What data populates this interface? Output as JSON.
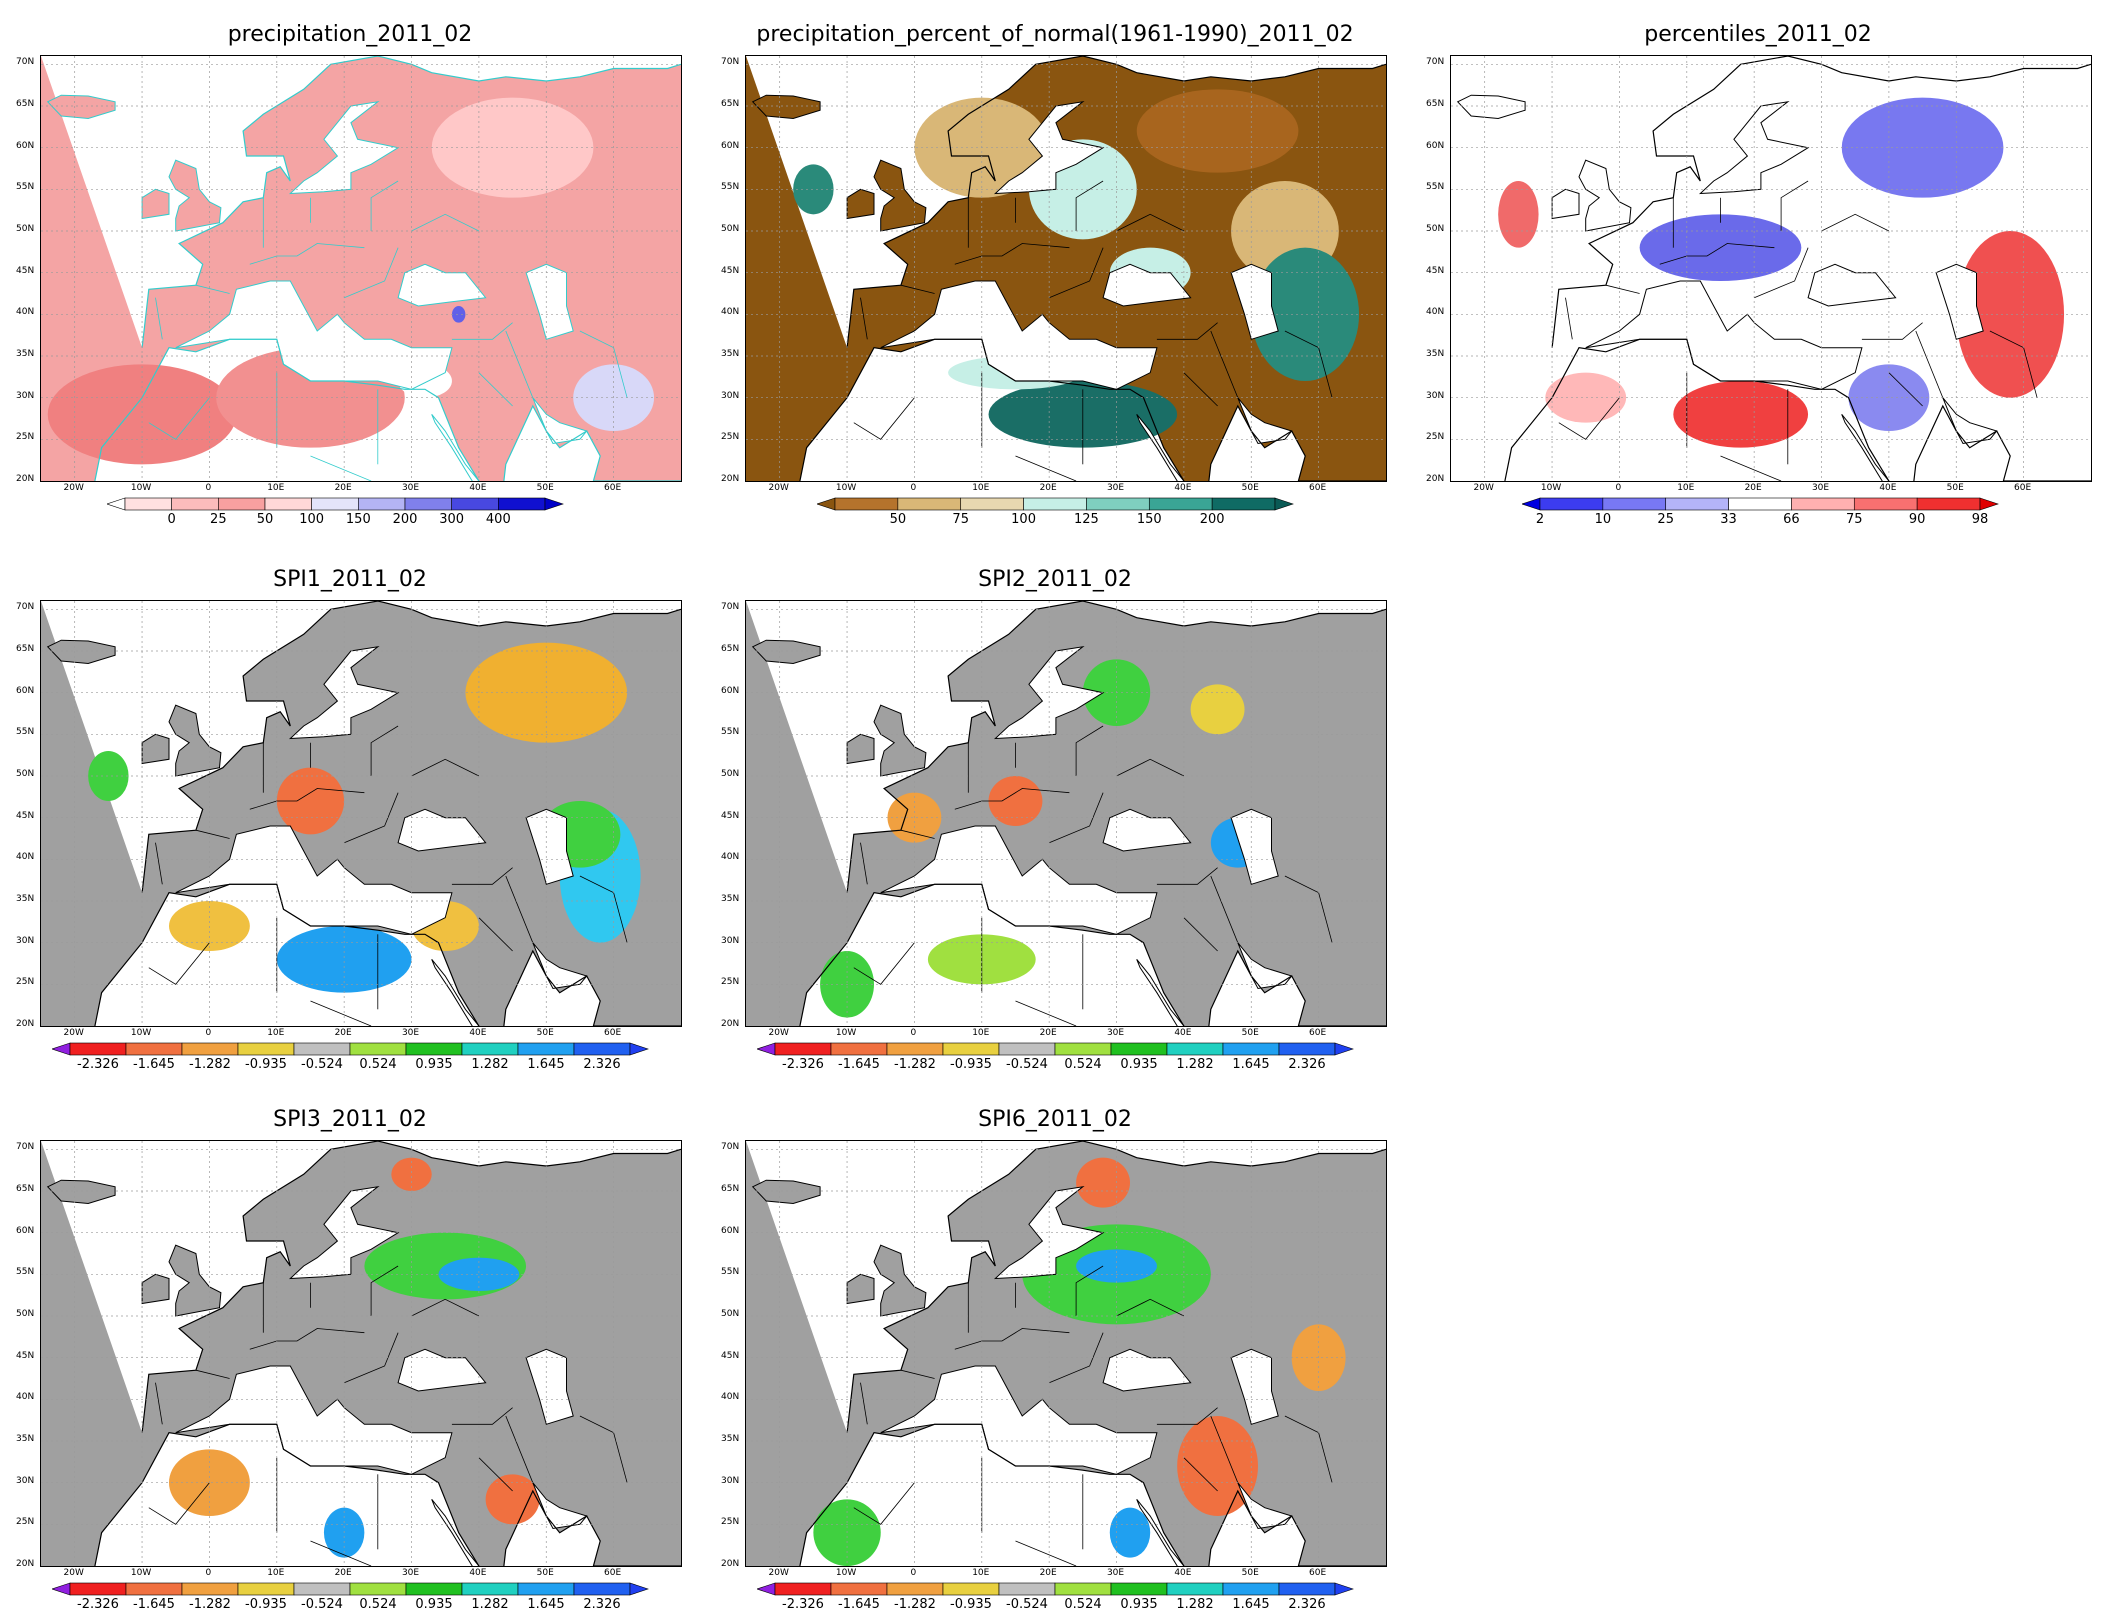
{
  "lat_labels": [
    "70N",
    "65N",
    "60N",
    "55N",
    "50N",
    "45N",
    "40N",
    "35N",
    "30N",
    "25N",
    "20N"
  ],
  "lon_labels": [
    "20W",
    "10W",
    "0",
    "10E",
    "20E",
    "30E",
    "40E",
    "50E",
    "60E"
  ],
  "panels": [
    {
      "id": "precip",
      "title": "precipitation_2011_02",
      "base_color": "#f4a4a4",
      "coast_color": "#33cccc",
      "blobs": [
        {
          "lon": -10,
          "lat": 28,
          "rx": 14,
          "ry": 6,
          "color": "#f08080"
        },
        {
          "lon": 15,
          "lat": 30,
          "rx": 14,
          "ry": 6,
          "color": "#f29090"
        },
        {
          "lon": 45,
          "lat": 60,
          "rx": 12,
          "ry": 6,
          "color": "#ffc8c8"
        },
        {
          "lon": 60,
          "lat": 30,
          "rx": 6,
          "ry": 4,
          "color": "#d8d8f8"
        },
        {
          "lon": 32,
          "lat": 32,
          "rx": 4,
          "ry": 2,
          "color": "#ffffff"
        },
        {
          "lon": 37,
          "lat": 40,
          "rx": 1,
          "ry": 1,
          "color": "#6060e8"
        }
      ],
      "colorbar": {
        "colors": [
          "#ffe0e0",
          "#fcbcbc",
          "#f8a0a0",
          "#ffd8d8",
          "#e4e4fa",
          "#b4b4f4",
          "#8080ec",
          "#4848e0",
          "#1010d0"
        ],
        "labels": [
          "0",
          "25",
          "50",
          "100",
          "150",
          "200",
          "300",
          "400"
        ],
        "left_tri": "#ffffff",
        "right_tri": "#0000c8"
      }
    },
    {
      "id": "pnormal",
      "title": "precipitation_percent_of_normal(1961-1990)_2011_02",
      "base_color": "#8a5510",
      "coast_color": "#000000",
      "blobs": [
        {
          "lon": 10,
          "lat": 60,
          "rx": 10,
          "ry": 6,
          "color": "#d9b777"
        },
        {
          "lon": 25,
          "lat": 55,
          "rx": 8,
          "ry": 6,
          "color": "#c6efe6"
        },
        {
          "lon": 45,
          "lat": 62,
          "rx": 12,
          "ry": 5,
          "color": "#a8651e"
        },
        {
          "lon": 55,
          "lat": 50,
          "rx": 8,
          "ry": 6,
          "color": "#d9b777"
        },
        {
          "lon": 58,
          "lat": 40,
          "rx": 8,
          "ry": 8,
          "color": "#2a8a7a"
        },
        {
          "lon": 25,
          "lat": 28,
          "rx": 14,
          "ry": 4,
          "color": "#1a6e66"
        },
        {
          "lon": 15,
          "lat": 33,
          "rx": 10,
          "ry": 2,
          "color": "#c6efe6"
        },
        {
          "lon": -15,
          "lat": 55,
          "rx": 3,
          "ry": 3,
          "color": "#2a8a7a"
        },
        {
          "lon": 35,
          "lat": 45,
          "rx": 6,
          "ry": 3,
          "color": "#c6efe6"
        }
      ],
      "colorbar": {
        "colors": [
          "#b5732c",
          "#d9b777",
          "#e8d8b0",
          "#c6efe6",
          "#7fcfbf",
          "#3aa595",
          "#0f6b64"
        ],
        "labels": [
          "50",
          "75",
          "100",
          "125",
          "150",
          "200"
        ],
        "left_tri": "#8a5510",
        "right_tri": "#0a5a55"
      }
    },
    {
      "id": "pctl",
      "title": "percentiles_2011_02",
      "base_color": "#ffffff",
      "coast_color": "#000000",
      "blobs": [
        {
          "lon": 45,
          "lat": 60,
          "rx": 12,
          "ry": 6,
          "color": "#7878f0"
        },
        {
          "lon": 15,
          "lat": 48,
          "rx": 12,
          "ry": 4,
          "color": "#6a6aea"
        },
        {
          "lon": 58,
          "lat": 40,
          "rx": 8,
          "ry": 10,
          "color": "#f05050"
        },
        {
          "lon": 18,
          "lat": 28,
          "rx": 10,
          "ry": 4,
          "color": "#f04040"
        },
        {
          "lon": -15,
          "lat": 52,
          "rx": 3,
          "ry": 4,
          "color": "#f06a6a"
        },
        {
          "lon": 40,
          "lat": 30,
          "rx": 6,
          "ry": 4,
          "color": "#8a8af0"
        },
        {
          "lon": -5,
          "lat": 30,
          "rx": 6,
          "ry": 3,
          "color": "#ffb8b8"
        }
      ],
      "colorbar": {
        "colors": [
          "#3c3cf0",
          "#7878f4",
          "#b4b4f8",
          "#ffffff",
          "#ffb0b0",
          "#f87070",
          "#f03030"
        ],
        "labels": [
          "2",
          "10",
          "25",
          "33",
          "66",
          "75",
          "90",
          "98"
        ],
        "left_tri": "#0000e0",
        "right_tri": "#e00000"
      }
    },
    {
      "id": "spi1",
      "title": "SPI1_2011_02",
      "base_color": "#a0a0a0",
      "coast_color": "#000000",
      "blobs": [
        {
          "lon": 50,
          "lat": 60,
          "rx": 12,
          "ry": 6,
          "color": "#f0b030"
        },
        {
          "lon": 15,
          "lat": 47,
          "rx": 5,
          "ry": 4,
          "color": "#f07040"
        },
        {
          "lon": 20,
          "lat": 28,
          "rx": 10,
          "ry": 4,
          "color": "#20a0f0"
        },
        {
          "lon": 58,
          "lat": 38,
          "rx": 6,
          "ry": 8,
          "color": "#30c8f0"
        },
        {
          "lon": 55,
          "lat": 43,
          "rx": 6,
          "ry": 4,
          "color": "#40d040"
        },
        {
          "lon": -15,
          "lat": 50,
          "rx": 3,
          "ry": 3,
          "color": "#40d040"
        },
        {
          "lon": 0,
          "lat": 32,
          "rx": 6,
          "ry": 3,
          "color": "#f0c040"
        },
        {
          "lon": 35,
          "lat": 32,
          "rx": 5,
          "ry": 3,
          "color": "#f0c040"
        }
      ],
      "colorbar": {
        "colors": [
          "#f02020",
          "#f07040",
          "#f0a040",
          "#e8d040",
          "#c0c0c0",
          "#a0e040",
          "#20c020",
          "#20d0c0",
          "#20a0f0",
          "#2060f0"
        ],
        "labels": [
          "-2.326",
          "-1.645",
          "-1.282",
          "-0.935",
          "-0.524",
          "0.524",
          "0.935",
          "1.282",
          "1.645",
          "2.326"
        ],
        "left_tri": "#9020e0",
        "right_tri": "#2040f0"
      }
    },
    {
      "id": "spi2",
      "title": "SPI2_2011_02",
      "base_color": "#a0a0a0",
      "coast_color": "#000000",
      "blobs": [
        {
          "lon": 30,
          "lat": 60,
          "rx": 5,
          "ry": 4,
          "color": "#40d040"
        },
        {
          "lon": 15,
          "lat": 47,
          "rx": 4,
          "ry": 3,
          "color": "#f07040"
        },
        {
          "lon": 0,
          "lat": 45,
          "rx": 4,
          "ry": 3,
          "color": "#f0a040"
        },
        {
          "lon": 10,
          "lat": 28,
          "rx": 8,
          "ry": 3,
          "color": "#a0e040"
        },
        {
          "lon": -10,
          "lat": 25,
          "rx": 4,
          "ry": 4,
          "color": "#40d040"
        },
        {
          "lon": 48,
          "lat": 42,
          "rx": 4,
          "ry": 3,
          "color": "#20a0f0"
        },
        {
          "lon": 45,
          "lat": 58,
          "rx": 4,
          "ry": 3,
          "color": "#e8d040"
        }
      ],
      "colorbar": {
        "colors": [
          "#f02020",
          "#f07040",
          "#f0a040",
          "#e8d040",
          "#c0c0c0",
          "#a0e040",
          "#20c020",
          "#20d0c0",
          "#20a0f0",
          "#2060f0"
        ],
        "labels": [
          "-2.326",
          "-1.645",
          "-1.282",
          "-0.935",
          "-0.524",
          "0.524",
          "0.935",
          "1.282",
          "1.645",
          "2.326"
        ],
        "left_tri": "#9020e0",
        "right_tri": "#2040f0"
      }
    },
    {
      "id": "spi3",
      "title": "SPI3_2011_02",
      "base_color": "#a0a0a0",
      "coast_color": "#000000",
      "blobs": [
        {
          "lon": 35,
          "lat": 56,
          "rx": 12,
          "ry": 4,
          "color": "#40d040"
        },
        {
          "lon": 40,
          "lat": 55,
          "rx": 6,
          "ry": 2,
          "color": "#20a0f0"
        },
        {
          "lon": 0,
          "lat": 30,
          "rx": 6,
          "ry": 4,
          "color": "#f0a040"
        },
        {
          "lon": 20,
          "lat": 24,
          "rx": 3,
          "ry": 3,
          "color": "#20a0f0"
        },
        {
          "lon": 45,
          "lat": 28,
          "rx": 4,
          "ry": 3,
          "color": "#f07040"
        },
        {
          "lon": 30,
          "lat": 67,
          "rx": 3,
          "ry": 2,
          "color": "#f07040"
        }
      ],
      "colorbar": {
        "colors": [
          "#f02020",
          "#f07040",
          "#f0a040",
          "#e8d040",
          "#c0c0c0",
          "#a0e040",
          "#20c020",
          "#20d0c0",
          "#20a0f0",
          "#2060f0"
        ],
        "labels": [
          "-2.326",
          "-1.645",
          "-1.282",
          "-0.935",
          "-0.524",
          "0.524",
          "0.935",
          "1.282",
          "1.645",
          "2.326"
        ],
        "left_tri": "#9020e0",
        "right_tri": "#2040f0"
      }
    },
    {
      "id": "spi6",
      "title": "SPI6_2011_02",
      "base_color": "#a0a0a0",
      "coast_color": "#000000",
      "blobs": [
        {
          "lon": 30,
          "lat": 55,
          "rx": 14,
          "ry": 6,
          "color": "#40d040"
        },
        {
          "lon": 30,
          "lat": 56,
          "rx": 6,
          "ry": 2,
          "color": "#20a0f0"
        },
        {
          "lon": 45,
          "lat": 32,
          "rx": 6,
          "ry": 6,
          "color": "#f07040"
        },
        {
          "lon": 28,
          "lat": 66,
          "rx": 4,
          "ry": 3,
          "color": "#f07040"
        },
        {
          "lon": -10,
          "lat": 24,
          "rx": 5,
          "ry": 4,
          "color": "#40d040"
        },
        {
          "lon": 32,
          "lat": 24,
          "rx": 3,
          "ry": 3,
          "color": "#20a0f0"
        },
        {
          "lon": 60,
          "lat": 45,
          "rx": 4,
          "ry": 4,
          "color": "#f0a040"
        }
      ],
      "colorbar": {
        "colors": [
          "#f02020",
          "#f07040",
          "#f0a040",
          "#e8d040",
          "#c0c0c0",
          "#a0e040",
          "#20c020",
          "#20d0c0",
          "#20a0f0",
          "#2060f0"
        ],
        "labels": [
          "-2.326",
          "-1.645",
          "-1.282",
          "-0.935",
          "-0.524",
          "0.524",
          "0.935",
          "1.282",
          "1.645",
          "2.326"
        ],
        "left_tri": "#9020e0",
        "right_tri": "#2040f0"
      }
    }
  ]
}
